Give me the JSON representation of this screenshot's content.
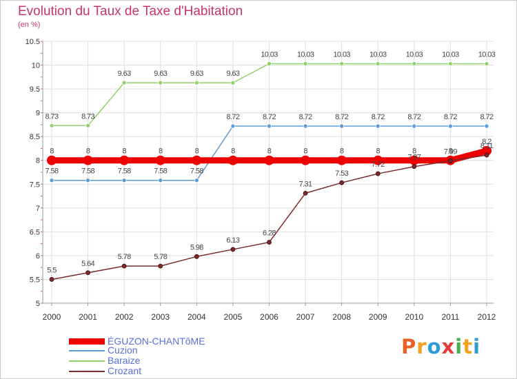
{
  "title": "Evolution du Taux de Taxe d'Habitation",
  "unit": "(en %)",
  "logo": {
    "text": "Proxiti",
    "letter_colors": [
      "#e95f26",
      "#f2a31e",
      "#2e9bd6",
      "#e63b3b",
      "#4ab04a",
      "#f2a31e",
      "#2e9bd6"
    ]
  },
  "chart_data": {
    "type": "line",
    "title": "Evolution du Taux de Taxe d'Habitation",
    "ylabel": "(en %)",
    "x": [
      "2000",
      "2001",
      "2002",
      "2003",
      "2004",
      "2005",
      "2006",
      "2007",
      "2008",
      "2009",
      "2010",
      "2011",
      "2012"
    ],
    "ylim": [
      5,
      10.5
    ],
    "yticks": [
      "5",
      "5.5",
      "6",
      "6.5",
      "7",
      "7.5",
      "8",
      "8.5",
      "9",
      "9.5",
      "10",
      "10.5"
    ],
    "grid": true,
    "legend_position": "bottom-left",
    "series": [
      {
        "name": "ÉGUZON-CHANTôME",
        "color": "#ee0000",
        "values": [
          8,
          8,
          8,
          8,
          8,
          8,
          8,
          8,
          8,
          8,
          8,
          8,
          8.2
        ],
        "labels": [
          "8",
          "8",
          "8",
          "8",
          "8",
          "8",
          "8",
          "8",
          "8",
          "8",
          "8",
          "8",
          "8.2"
        ]
      },
      {
        "name": "Cuzion",
        "color": "#5b9bd5",
        "values": [
          7.58,
          7.58,
          7.58,
          7.58,
          7.58,
          8.72,
          8.72,
          8.72,
          8.72,
          8.72,
          8.72,
          8.72,
          8.72
        ],
        "labels": [
          "7.58",
          "7.58",
          "7.58",
          "7.58",
          "7.58",
          "8.72",
          "8.72",
          "8.72",
          "8.72",
          "8.72",
          "8.72",
          "8.72",
          "8.72"
        ]
      },
      {
        "name": "Baraize",
        "color": "#8fd16a",
        "values": [
          8.73,
          8.73,
          9.63,
          9.63,
          9.63,
          9.63,
          10.03,
          10.03,
          10.03,
          10.03,
          10.03,
          10.03,
          10.03
        ],
        "labels": [
          "8.73",
          "8.73",
          "9.63",
          "9.63",
          "9.63",
          "9.63",
          "10.03",
          "10.03",
          "10.03",
          "10.03",
          "10.03",
          "10.03",
          "10.03"
        ]
      },
      {
        "name": "Crozant",
        "color": "#7a2a2a",
        "values": [
          5.5,
          5.64,
          5.78,
          5.78,
          5.98,
          6.13,
          6.28,
          7.31,
          7.53,
          7.72,
          7.87,
          7.99,
          8.11
        ],
        "labels": [
          "5.5",
          "5.64",
          "5.78",
          "5.78",
          "5.98",
          "6.13",
          "6.28",
          "7.31",
          "7.53",
          "7.72",
          "7.87",
          "7.99",
          "8.11"
        ]
      }
    ]
  }
}
